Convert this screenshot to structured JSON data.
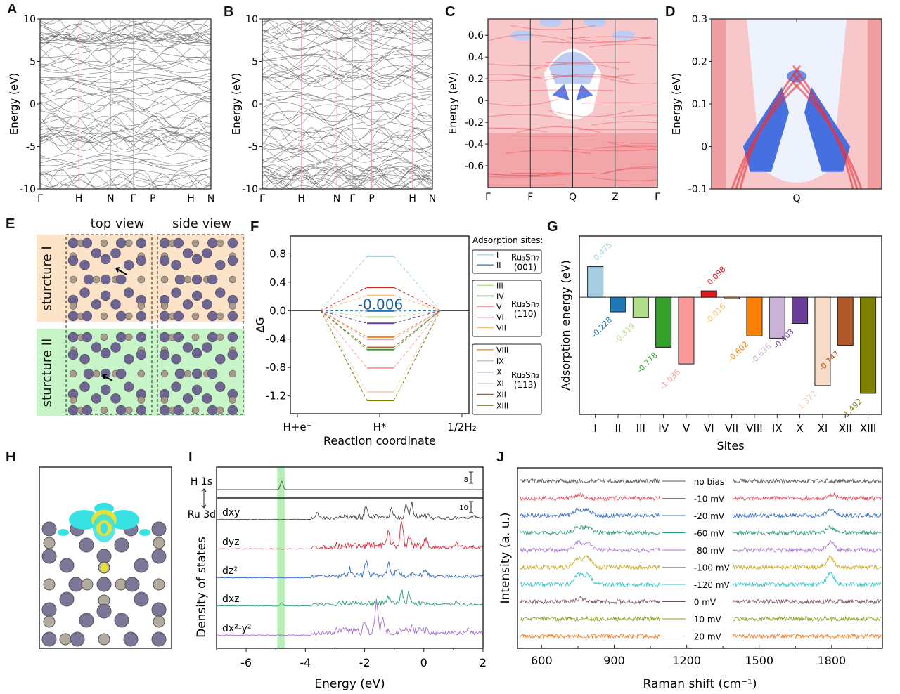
{
  "panels": {
    "A": {
      "label": "A"
    },
    "B": {
      "label": "B"
    },
    "C": {
      "label": "C"
    },
    "D": {
      "label": "D"
    },
    "E": {
      "label": "E"
    },
    "F": {
      "label": "F"
    },
    "G": {
      "label": "G"
    },
    "H": {
      "label": "H"
    },
    "I": {
      "label": "I"
    },
    "J": {
      "label": "J"
    }
  },
  "chart_data": [
    {
      "id": "A",
      "type": "line",
      "title": "",
      "ylabel": "Energy (eV)",
      "xlabel": "",
      "ylim": [
        -10,
        10
      ],
      "yticks": [
        "10",
        "5",
        "0",
        "-5",
        "-10"
      ],
      "ytick_values": [
        10,
        5,
        0,
        -5,
        -10
      ],
      "kpath_labels": [
        "Γ",
        "H",
        "N",
        "Γ",
        "P",
        "H",
        "N"
      ],
      "kpath_positions": [
        0,
        0.227,
        0.413,
        0.545,
        0.66,
        0.883,
        1.0
      ],
      "description": "electronic band structure (many bands, gray lines)"
    },
    {
      "id": "B",
      "type": "line",
      "ylabel": "Energy (eV)",
      "ylim": [
        -10,
        10
      ],
      "yticks": [
        "10",
        "5",
        "0",
        "-5",
        "-10"
      ],
      "ytick_values": [
        10,
        5,
        0,
        -5,
        -10
      ],
      "kpath_labels": [
        "Γ",
        "H",
        "N",
        "Γ",
        "P",
        "H",
        "N"
      ],
      "kpath_positions": [
        0,
        0.23,
        0.438,
        0.53,
        0.643,
        0.883,
        1.0
      ],
      "description": "electronic band structure with gap near 0 eV"
    },
    {
      "id": "C",
      "type": "heatmap",
      "ylabel": "Energy (eV)",
      "ylim": [
        -0.8,
        0.75
      ],
      "yticks": [
        "0.6",
        "0.4",
        "0.2",
        "0",
        "-0.2",
        "-0.4",
        "-0.6"
      ],
      "ytick_values": [
        0.6,
        0.4,
        0.2,
        0,
        -0.2,
        -0.4,
        -0.6
      ],
      "kpath_labels": [
        "Γ",
        "F",
        "Q",
        "Z",
        "Γ"
      ],
      "kpath_positions": [
        0,
        0.25,
        0.5,
        0.75,
        1.0
      ],
      "colormap": [
        "#3b5bdb",
        "#ffffff",
        "#e8323a"
      ]
    },
    {
      "id": "D",
      "type": "heatmap",
      "ylabel": "Energy (eV)",
      "ylim": [
        -0.1,
        0.3
      ],
      "yticks": [
        "0.3",
        "0.2",
        "0.1",
        "0",
        "-0.1"
      ],
      "ytick_values": [
        0.3,
        0.2,
        0.1,
        0,
        -0.1
      ],
      "kpath_labels": [
        "Q"
      ],
      "kpath_positions": [
        0.5
      ],
      "colormap": [
        "#3b5bdb",
        "#ffffff",
        "#e8323a"
      ]
    },
    {
      "id": "F",
      "type": "line",
      "title": "",
      "ylabel": "ΔG",
      "xlabel": "Reaction coordinate",
      "ylim": [
        -1.45,
        1.05
      ],
      "yticks": [
        "0.8",
        "0.4",
        "0.0",
        "-0.4",
        "-0.8",
        "-1.2"
      ],
      "ytick_values": [
        0.8,
        0.4,
        0.0,
        -0.4,
        -0.8,
        -1.2
      ],
      "categories": [
        "H+e⁻",
        "H*",
        "1/2H₂"
      ],
      "annotation": "-0.006",
      "legend_title": "Adsorption sites:",
      "legend_groups": [
        {
          "name": "Ru₃Sn₇",
          "facet": "(001)",
          "sites": [
            "I",
            "II"
          ]
        },
        {
          "name": "Ru₃Sn₇",
          "facet": "(110)",
          "sites": [
            "III",
            "IV",
            "V",
            "VI",
            "VII"
          ]
        },
        {
          "name": "Ru₂Sn₃",
          "facet": "(113)",
          "sites": [
            "VIII",
            "IX",
            "X",
            "XI",
            "XII",
            "XIII"
          ]
        }
      ],
      "series": [
        {
          "name": "I",
          "value": 0.765,
          "color": "#a6cee3"
        },
        {
          "name": "II",
          "value": -0.006,
          "color": "#1f78b4"
        },
        {
          "name": "III",
          "value": -0.09,
          "color": "#b2df8a"
        },
        {
          "name": "IV",
          "value": -0.548,
          "color": "#33a02c"
        },
        {
          "name": "V",
          "value": -0.806,
          "color": "#fb9a99"
        },
        {
          "name": "VI",
          "value": 0.328,
          "color": "#e31a1c"
        },
        {
          "name": "VII",
          "value": 0.214,
          "color": "#fdbf6f"
        },
        {
          "name": "VIII",
          "value": -0.372,
          "color": "#ff7f00"
        },
        {
          "name": "IX",
          "value": -0.406,
          "color": "#cab2d6"
        },
        {
          "name": "X",
          "value": -0.178,
          "color": "#6a3d9a"
        },
        {
          "name": "XI",
          "value": -1.142,
          "color": "#f4d6c2"
        },
        {
          "name": "XII",
          "value": -0.517,
          "color": "#b15928"
        },
        {
          "name": "XIII",
          "value": -1.262,
          "color": "#808000"
        }
      ]
    },
    {
      "id": "G",
      "type": "bar",
      "ylabel": "Adsorption energy (eV)",
      "xlabel": "Sites",
      "ylim": [
        -1.82,
        0.95
      ],
      "categories": [
        "I",
        "II",
        "III",
        "IV",
        "V",
        "VI",
        "VII",
        "VIII",
        "IX",
        "X",
        "XI",
        "XII",
        "XIII"
      ],
      "values": [
        0.475,
        -0.228,
        -0.319,
        -0.778,
        -1.036,
        0.098,
        -0.016,
        -0.602,
        -0.636,
        -0.408,
        -1.372,
        -0.747,
        -1.492
      ],
      "value_labels": [
        "0.475",
        "-0.228",
        "-0.319",
        "-0.778",
        "-1.036",
        "0.098",
        "-0.016",
        "-0.602",
        "-0.636",
        "-0.408",
        "-1.372",
        "-0.747",
        "-1.492"
      ],
      "colors": [
        "#a6cee3",
        "#1f78b4",
        "#b2df8a",
        "#33a02c",
        "#fb9a99",
        "#e31a1c",
        "#fdbf6f",
        "#ff7f00",
        "#cab2d6",
        "#6a3d9a",
        "#f9dcc8",
        "#b15928",
        "#808000"
      ]
    },
    {
      "id": "I",
      "type": "line",
      "ylabel": "Density of states",
      "xlabel": "Energy (eV)",
      "xlim": [
        -7,
        2
      ],
      "xticks": [
        "-6",
        "-4",
        "-2",
        "0",
        "2"
      ],
      "xtick_values": [
        -6,
        -4,
        -2,
        0,
        2
      ],
      "highlight_band": [
        -4.95,
        -4.7
      ],
      "highlight_color": "#9ee89a",
      "top_label": "H 1s",
      "bottom_label": "Ru 3d",
      "scale_bar_top": "8",
      "scale_bar_bottom": "10",
      "series": [
        {
          "name": "H 1s",
          "label": "",
          "color": "#444444",
          "peaks": [
            [
              -4.8,
              1.0
            ]
          ]
        },
        {
          "name": "dxy",
          "label": "dxy",
          "color": "#444444",
          "peaks": [
            [
              -3.6,
              0.25
            ],
            [
              -1.95,
              0.45
            ],
            [
              -1.1,
              0.45
            ],
            [
              -0.6,
              0.55
            ],
            [
              -0.4,
              0.6
            ],
            [
              1.7,
              0.15
            ]
          ]
        },
        {
          "name": "dyz",
          "label": "dyz",
          "color": "#e0313f",
          "peaks": [
            [
              -1.2,
              0.45
            ],
            [
              -0.75,
              0.95
            ],
            [
              -0.5,
              0.35
            ],
            [
              0.05,
              0.25
            ],
            [
              1.1,
              0.15
            ]
          ]
        },
        {
          "name": "dz2",
          "label": "dz²",
          "color": "#2f6bc7",
          "peaks": [
            [
              -2.5,
              0.3
            ],
            [
              -1.95,
              0.65
            ],
            [
              -1.2,
              0.6
            ],
            [
              -0.9,
              0.35
            ],
            [
              0.05,
              0.35
            ]
          ]
        },
        {
          "name": "dxz",
          "label": "dxz",
          "color": "#2a9e6e",
          "peaks": [
            [
              -4.8,
              0.15
            ],
            [
              -1.2,
              0.35
            ],
            [
              -0.75,
              0.6
            ],
            [
              -0.5,
              0.5
            ],
            [
              1.1,
              0.15
            ]
          ]
        },
        {
          "name": "dx2-y2",
          "label": "dx²-y²",
          "color": "#a36bd1",
          "peaks": [
            [
              -2.0,
              0.3
            ],
            [
              -1.6,
              1.0
            ],
            [
              -1.4,
              0.4
            ],
            [
              -0.4,
              0.15
            ],
            [
              1.5,
              0.15
            ]
          ]
        }
      ]
    },
    {
      "id": "J",
      "type": "line",
      "ylabel": "Intensity (a. u.)",
      "xlabel": "Raman shift (cm⁻¹)",
      "xlim": [
        500,
        2010
      ],
      "xticks": [
        "600",
        "900",
        "1200",
        "1500",
        "1800"
      ],
      "xtick_values": [
        600,
        900,
        1200,
        1500,
        1800
      ],
      "gap_range": [
        1090,
        1390
      ],
      "series": [
        {
          "name": "no bias",
          "color": "#555555",
          "peaks": []
        },
        {
          "name": "-10 mV",
          "color": "#e34a5a",
          "peaks": [
            [
              755,
              0.4
            ],
            [
              1800,
              0.4
            ]
          ]
        },
        {
          "name": "-20 mV",
          "color": "#3a6fc9",
          "peaks": [
            [
              750,
              0.6
            ],
            [
              790,
              0.6
            ],
            [
              1795,
              0.6
            ]
          ]
        },
        {
          "name": "-60 mV",
          "color": "#2f9e72",
          "peaks": [
            [
              750,
              0.6
            ],
            [
              790,
              0.6
            ],
            [
              1795,
              0.6
            ]
          ]
        },
        {
          "name": "-80 mV",
          "color": "#a877d4",
          "peaks": [
            [
              750,
              0.7
            ],
            [
              790,
              0.8
            ],
            [
              1795,
              0.8
            ]
          ]
        },
        {
          "name": "-100 mV",
          "color": "#c9a81c",
          "peaks": [
            [
              750,
              0.9
            ],
            [
              790,
              1.0
            ],
            [
              1795,
              1.0
            ]
          ]
        },
        {
          "name": "-120  mV",
          "color": "#2fc4c4",
          "peaks": [
            [
              750,
              1.0
            ],
            [
              790,
              1.0
            ],
            [
              1795,
              1.1
            ]
          ]
        },
        {
          "name": "0 mV",
          "color": "#7a4e5e",
          "peaks": [
            [
              760,
              0.3
            ]
          ]
        },
        {
          "name": "10 mV",
          "color": "#8a9e1e",
          "peaks": []
        },
        {
          "name": "20 mV",
          "color": "#f07f2a",
          "peaks": []
        }
      ]
    }
  ],
  "panelE": {
    "column_headers": [
      "top view",
      "side view"
    ],
    "row_labels": [
      "sturcture I",
      "sturcture II"
    ],
    "row_colors": [
      "#fde4c8",
      "#c8f5c8"
    ]
  }
}
